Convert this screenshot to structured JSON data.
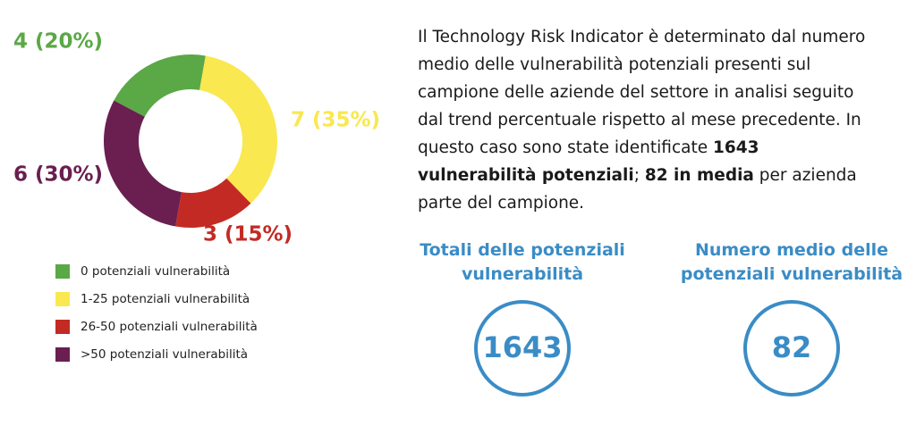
{
  "chart_data": {
    "type": "donut",
    "categories": [
      "0 potenziali vulnerabilità",
      "1-25 potenziali vulnerabilità",
      "26-50 potenziali vulnerabilità",
      ">50 potenziali vulnerabilità"
    ],
    "values": [
      4,
      7,
      3,
      6
    ],
    "value_labels": [
      "4 (20%)",
      "7 (35%)",
      "3 (15%)",
      "6 (30%)"
    ],
    "colors": [
      "#5ba846",
      "#f9e84f",
      "#c42a24",
      "#6a1f50"
    ]
  },
  "description": [
    "Il Technology Risk Indicator è determinato dal numero medio delle vulnerabilità potenziali presenti sul campione delle aziende del settore in analisi seguito dal trend percentuale rispetto al mese precedente. In questo caso sono state identificate ",
    "1643 vulnerabilità potenziali",
    "; ",
    "82 in media",
    " per azienda parte del campione."
  ],
  "stats": [
    {
      "title": [
        "Totali delle potenziali",
        "vulnerabilità"
      ],
      "value": 1643
    },
    {
      "title": [
        "Numero medio delle",
        "potenziali vulnerabilità"
      ],
      "value": 82
    }
  ]
}
